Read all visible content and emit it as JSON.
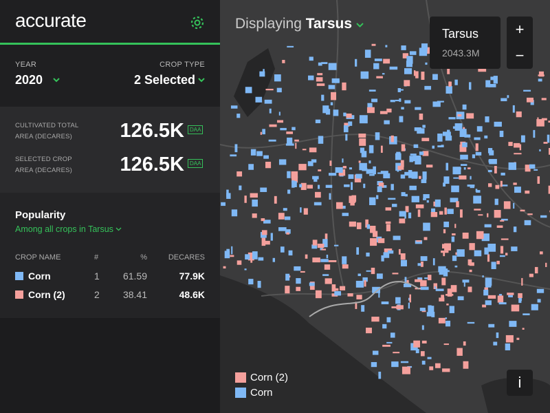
{
  "header": {
    "logo": "accurate"
  },
  "filters": {
    "year": {
      "label": "YEAR",
      "value": "2020"
    },
    "crop_type": {
      "label": "CROP TYPE",
      "value": "2 Selected"
    }
  },
  "stats": [
    {
      "label_lines": [
        "CULTIVATED TOTAL",
        "AREA (DECARES)"
      ],
      "value": "126.5K",
      "unit": "DAA"
    },
    {
      "label_lines": [
        "SELECTED CROP",
        "AREA (DECARES)"
      ],
      "value": "126.5K",
      "unit": "DAA"
    }
  ],
  "popularity": {
    "title": "Popularity",
    "subtitle": "Among all crops in Tarsus",
    "columns": [
      "CROP NAME",
      "#",
      "%",
      "DECARES"
    ],
    "rows": [
      {
        "color": "#7fb8f5",
        "name": "Corn",
        "rank": 1,
        "percent": 61.59,
        "decares": "77.9K"
      },
      {
        "color": "#f4a09c",
        "name": "Corn (2)",
        "rank": 2,
        "percent": 38.41,
        "decares": "48.6K"
      }
    ]
  },
  "map": {
    "displaying_label": "Displaying",
    "region": "Tarsus",
    "tooltip": {
      "title": "Tarsus",
      "value": "2043.3M"
    },
    "zoom_in": "+",
    "zoom_out": "−",
    "info": "i",
    "legend": [
      {
        "name": "Corn (2)",
        "color": "#f4a09c"
      },
      {
        "name": "Corn",
        "color": "#7fb8f5"
      }
    ]
  }
}
